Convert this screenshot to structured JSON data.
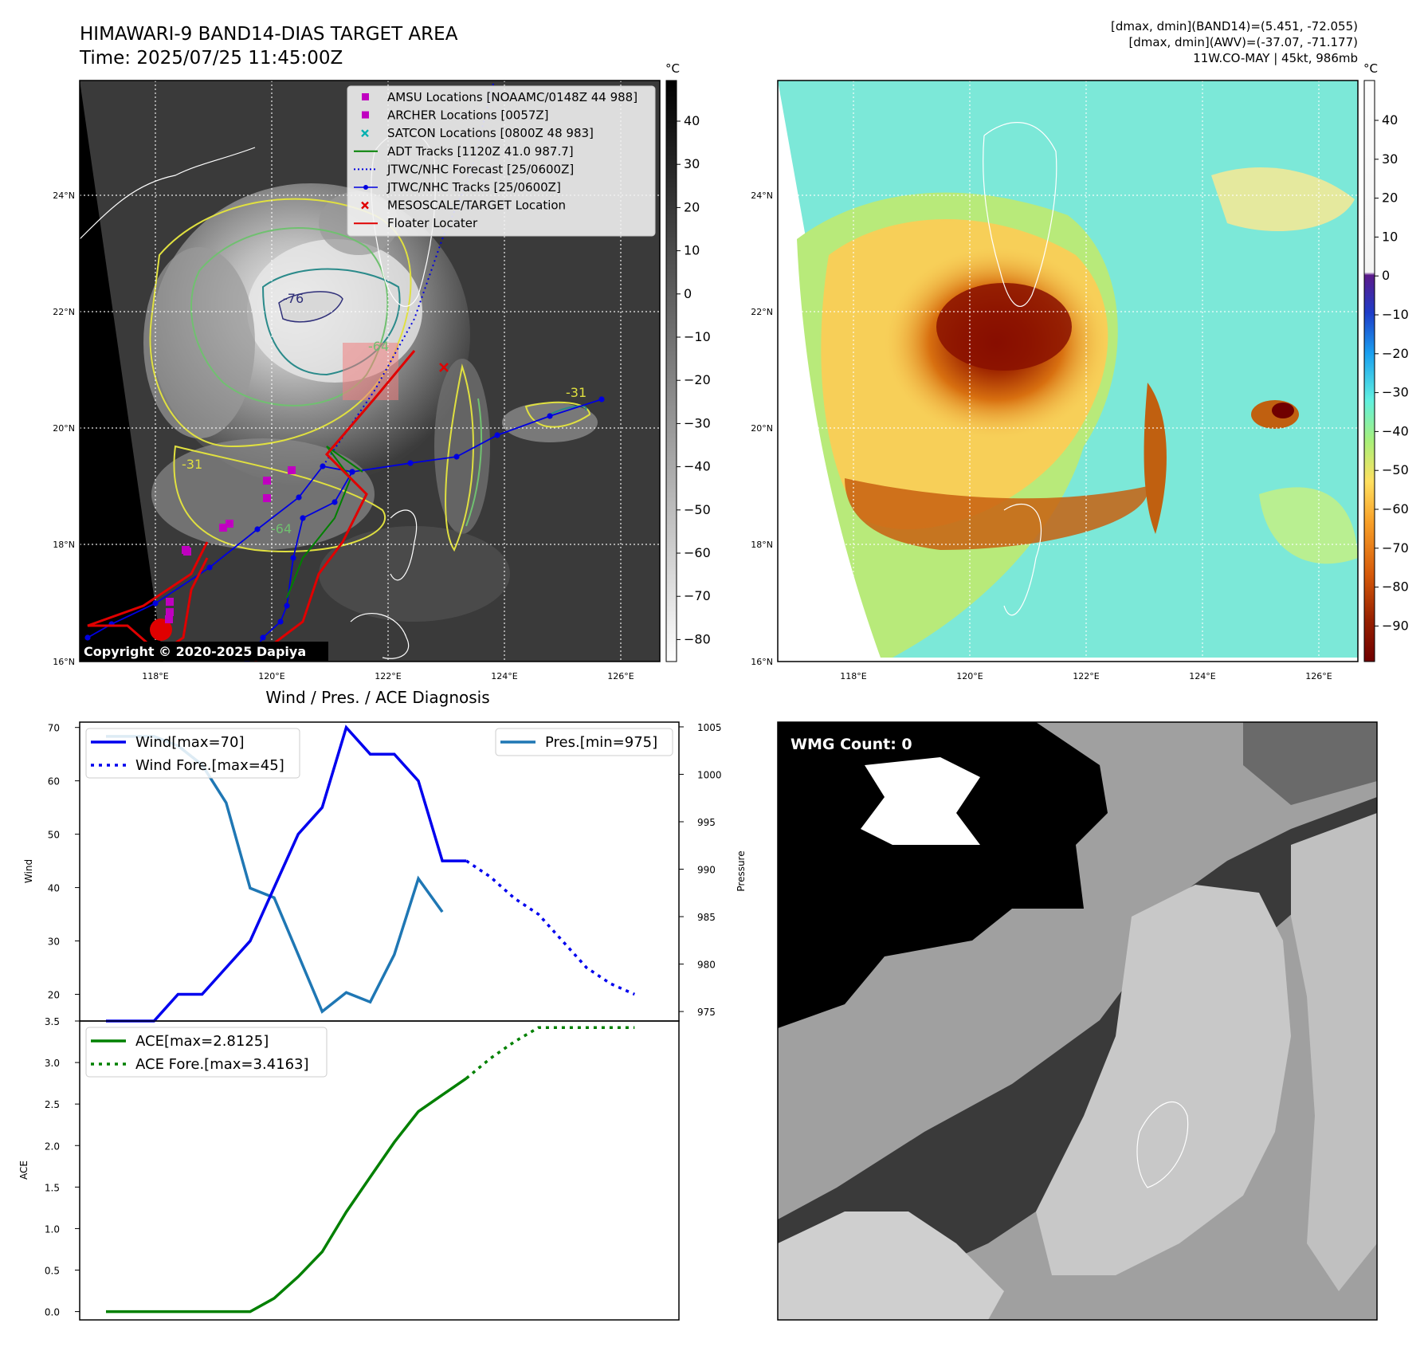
{
  "header": {
    "title": "HIMAWARI-9 BAND14-DIAS TARGET AREA",
    "time": "Time: 2025/07/25 11:45:00Z",
    "info_line1": "[dmax, dmin](BAND14)=(5.451, -72.055)",
    "info_line2": "[dmax, dmin](AWV)=(-37.07, -71.177)",
    "info_line3": "11W.CO-MAY | 45kt, 986mb"
  },
  "map": {
    "lat_labels": [
      "24°N",
      "22°N",
      "20°N",
      "18°N",
      "16°N"
    ],
    "lon_labels": [
      "118°E",
      "120°E",
      "122°E",
      "124°E",
      "126°E"
    ],
    "copyright": "Copyright © 2020-2025 Dapiya",
    "contour_labels": [
      "-31",
      "-31",
      "-64",
      "-76",
      "-64"
    ],
    "legend": [
      {
        "label": "AMSU Locations [NOAAMC/0148Z 44 988]",
        "marker": "square",
        "color": "#c000c0"
      },
      {
        "label": "ARCHER Locations [0057Z]",
        "marker": "square",
        "color": "#c000c0"
      },
      {
        "label": "SATCON Locations [0800Z 48 983]",
        "marker": "x",
        "color": "#00b0b0"
      },
      {
        "label": "ADT Tracks [1120Z 41.0 987.7]",
        "marker": "line",
        "color": "#008000"
      },
      {
        "label": "JTWC/NHC Forecast [25/0600Z]",
        "marker": "dotted",
        "color": "#0000e0"
      },
      {
        "label": "JTWC/NHC Tracks [25/0600Z]",
        "marker": "line-dot",
        "color": "#0000e0"
      },
      {
        "label": "MESOSCALE/TARGET Location",
        "marker": "x",
        "color": "#e00000"
      },
      {
        "label": "Floater Locater",
        "marker": "line",
        "color": "#e00000"
      }
    ]
  },
  "colorbar_gray": {
    "unit": "°C",
    "ticks": [
      "40",
      "30",
      "20",
      "10",
      "0",
      "−10",
      "−20",
      "−30",
      "−40",
      "−50",
      "−60",
      "−70",
      "−80"
    ]
  },
  "colorbar_awv": {
    "unit": "°C",
    "ticks": [
      "40",
      "30",
      "20",
      "10",
      "0",
      "−10",
      "−20",
      "−30",
      "−40",
      "−50",
      "−60",
      "−70",
      "−80",
      "−90"
    ]
  },
  "wind_panel": {
    "title": "Wind / Pres. / ACE Diagnosis",
    "ylabel_left": "Wind",
    "ylabel_right": "Pressure",
    "wind_ticks": [
      "70",
      "60",
      "50",
      "40",
      "30",
      "20"
    ],
    "pres_ticks": [
      "1005",
      "1000",
      "995",
      "990",
      "985",
      "980",
      "975"
    ],
    "legend_wind": "Wind[max=70]",
    "legend_wind_fore": "Wind Fore.[max=45]",
    "legend_pres": "Pres.[min=975]"
  },
  "ace_panel": {
    "ylabel": "ACE",
    "ticks": [
      "3.5",
      "3.0",
      "2.5",
      "2.0",
      "1.5",
      "1.0",
      "0.5",
      "0.0"
    ],
    "legend_ace": "ACE[max=2.8125]",
    "legend_ace_fore": "ACE Fore.[max=3.4163]"
  },
  "wmg": {
    "label": "WMG Count: 0"
  },
  "colors": {
    "wind": "#0000ee",
    "pressure": "#1f77b4",
    "ace": "#008000"
  },
  "chart_data": [
    {
      "type": "line",
      "title": "Wind / Pres. / ACE Diagnosis",
      "ylabel": "Wind",
      "ylim": [
        15,
        71
      ],
      "x": [
        0,
        1,
        2,
        3,
        4,
        5,
        6,
        7,
        8,
        9,
        10,
        11,
        12,
        13,
        14,
        15,
        16,
        17,
        18,
        19,
        20,
        21,
        22
      ],
      "series": [
        {
          "name": "Wind[max=70]",
          "x": [
            0,
            2,
            3,
            4,
            5,
            6,
            7,
            8,
            9,
            10,
            11,
            12,
            13,
            14,
            15
          ],
          "values": [
            15,
            15,
            20,
            20,
            25,
            30,
            40,
            50,
            55,
            70,
            65,
            65,
            60,
            45,
            45
          ]
        },
        {
          "name": "Wind Fore.[max=45]",
          "x": [
            15,
            16,
            17,
            18,
            19,
            20,
            21,
            22
          ],
          "values": [
            45,
            42,
            38,
            35,
            30,
            25,
            22,
            20
          ]
        }
      ]
    },
    {
      "type": "line",
      "ylabel": "Pressure",
      "ylim": [
        974,
        1005.5
      ],
      "series": [
        {
          "name": "Pres.[min=975]",
          "x": [
            0,
            1,
            2,
            3,
            4,
            5,
            6,
            7,
            8,
            9,
            10,
            11,
            12,
            13,
            14,
            15
          ],
          "values": [
            1004,
            1004,
            1004,
            1003,
            1001,
            997,
            988,
            987,
            981,
            975,
            977,
            976,
            981,
            989,
            985.5,
            null
          ]
        }
      ]
    },
    {
      "type": "line",
      "ylabel": "ACE",
      "ylim": [
        -0.1,
        3.5
      ],
      "series": [
        {
          "name": "ACE[max=2.8125]",
          "x": [
            0,
            1,
            2,
            3,
            4,
            5,
            6,
            7,
            8,
            9,
            10,
            11,
            12,
            13,
            14,
            15
          ],
          "values": [
            0,
            0,
            0,
            0,
            0,
            0,
            0,
            0.16,
            0.42,
            0.72,
            1.2,
            1.62,
            2.04,
            2.41,
            2.61,
            2.81
          ]
        },
        {
          "name": "ACE Fore.[max=3.4163]",
          "x": [
            15,
            16,
            17,
            18,
            19,
            20,
            21,
            22
          ],
          "values": [
            2.81,
            3.05,
            3.25,
            3.42,
            3.42,
            3.42,
            3.42,
            3.42
          ]
        }
      ]
    }
  ]
}
